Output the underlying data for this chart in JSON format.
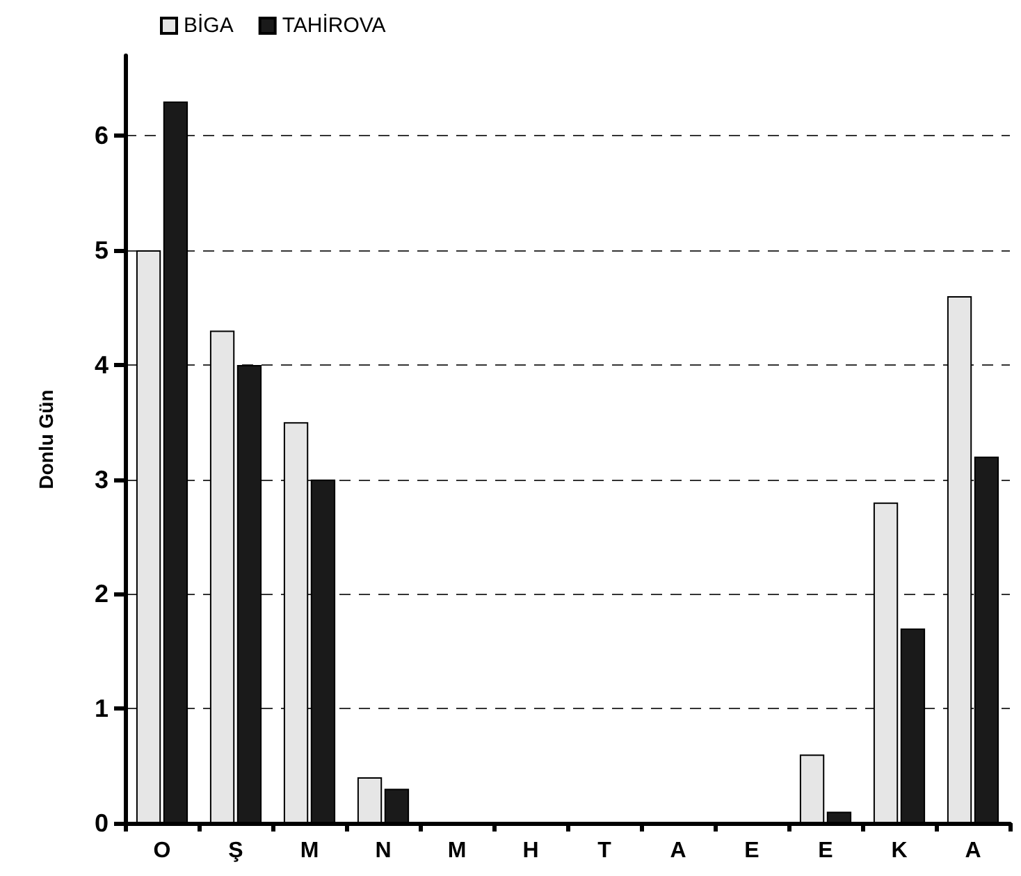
{
  "chart_data": {
    "type": "bar",
    "ylabel": "Donlu Gün",
    "categories": [
      "O",
      "Ş",
      "M",
      "N",
      "M",
      "H",
      "T",
      "A",
      "E",
      "E",
      "K",
      "A"
    ],
    "series": [
      {
        "name": "BİGA",
        "color": "#e6e6e6",
        "values": [
          5.0,
          4.3,
          3.5,
          0.4,
          0,
          0,
          0,
          0,
          0,
          0.6,
          2.8,
          4.6
        ]
      },
      {
        "name": "TAHİROVA",
        "color": "#1a1a1a",
        "values": [
          6.3,
          4.0,
          3.0,
          0.3,
          0,
          0,
          0,
          0,
          0,
          0.1,
          1.7,
          3.2
        ]
      }
    ],
    "ylim": [
      0,
      6.7
    ],
    "yticks": [
      0,
      1,
      2,
      3,
      4,
      5,
      6
    ],
    "grid": "y",
    "legend": "top left"
  }
}
